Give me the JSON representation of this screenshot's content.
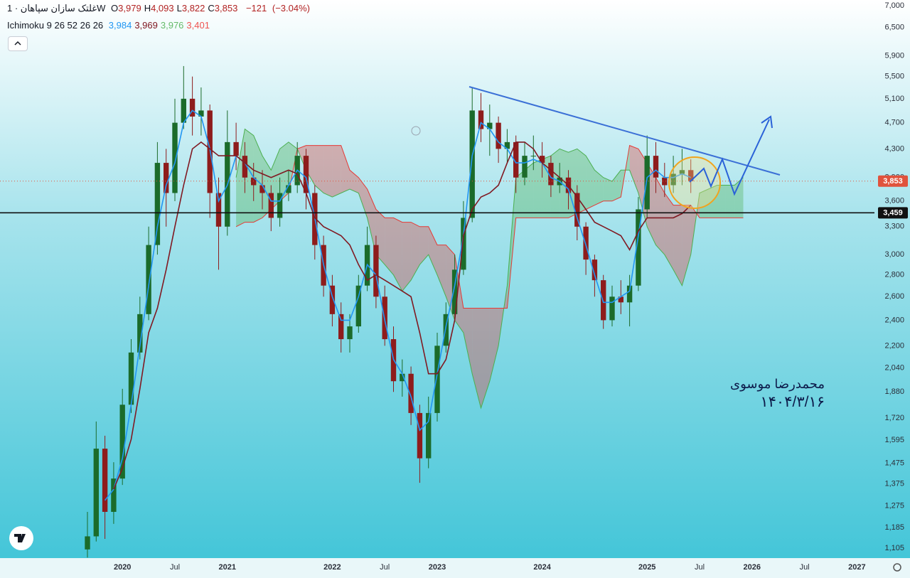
{
  "chart_data": {
    "type": "candlestick",
    "log_scale": true,
    "grid": false,
    "symbol": "غلتک سازان سپاهان · 1W",
    "ohlc_header": [
      {
        "key": "O",
        "value": 3979,
        "label": "3,979"
      },
      {
        "key": "H",
        "value": 4093,
        "label": "4,093"
      },
      {
        "key": "L",
        "value": 3822,
        "label": "3,822"
      },
      {
        "key": "C",
        "value": 3853,
        "label": "3,853"
      }
    ],
    "change": {
      "value": -121,
      "label": "−121"
    },
    "change_pct": {
      "value": -3.04,
      "label": "(−3.04%)"
    },
    "indicator": {
      "label": "Ichimoku 9 26 52 26 26",
      "values": [
        {
          "value": 3984,
          "label": "3,984",
          "color": "#2196f3"
        },
        {
          "value": 3969,
          "label": "3,969",
          "color": "#801922"
        },
        {
          "value": 3976,
          "label": "3,976",
          "color": "#66bb6a"
        },
        {
          "value": 3401,
          "label": "3,401",
          "color": "#ef5350"
        }
      ]
    },
    "annotations": [
      "محمدرضا موسوی",
      "۱۴۰۴/۳/۱۶"
    ],
    "xlim": [
      "2018-11",
      "2027-03"
    ],
    "xticks": [
      {
        "value": "2020-01",
        "label": "2020"
      },
      {
        "value": "2020-07",
        "label": "Jul"
      },
      {
        "value": "2021-01",
        "label": "2021"
      },
      {
        "value": "2022-01",
        "label": "2022"
      },
      {
        "value": "2022-07",
        "label": "Jul"
      },
      {
        "value": "2023-01",
        "label": "2023"
      },
      {
        "value": "2024-01",
        "label": "2024"
      },
      {
        "value": "2025-01",
        "label": "2025"
      },
      {
        "value": "2025-07",
        "label": "Jul"
      },
      {
        "value": "2026-01",
        "label": "2026"
      },
      {
        "value": "2026-07",
        "label": "Jul"
      },
      {
        "value": "2027-01",
        "label": "2027"
      }
    ],
    "ylim": [
      1068,
      7137
    ],
    "yticks": [
      {
        "value": 7000,
        "label": "7,000"
      },
      {
        "value": 6500,
        "label": "6,500"
      },
      {
        "value": 5900,
        "label": "5,900"
      },
      {
        "value": 5500,
        "label": "5,500"
      },
      {
        "value": 5100,
        "label": "5,100"
      },
      {
        "value": 4700,
        "label": "4,700"
      },
      {
        "value": 4300,
        "label": "4,300"
      },
      {
        "value": 3900,
        "label": "3,900"
      },
      {
        "value": 3600,
        "label": "3,600"
      },
      {
        "value": 3300,
        "label": "3,300"
      },
      {
        "value": 3000,
        "label": "3,000"
      },
      {
        "value": 2800,
        "label": "2,800"
      },
      {
        "value": 2600,
        "label": "2,600"
      },
      {
        "value": 2400,
        "label": "2,400"
      },
      {
        "value": 2200,
        "label": "2,200"
      },
      {
        "value": 2040,
        "label": "2,040"
      },
      {
        "value": 1880,
        "label": "1,880"
      },
      {
        "value": 1720,
        "label": "1,720"
      },
      {
        "value": 1595,
        "label": "1,595"
      },
      {
        "value": 1475,
        "label": "1,475"
      },
      {
        "value": 1375,
        "label": "1,375"
      },
      {
        "value": 1275,
        "label": "1,275"
      },
      {
        "value": 1185,
        "label": "1,185"
      },
      {
        "value": 1105,
        "label": "1,105"
      }
    ],
    "last_price": {
      "value": 3853,
      "label": "3,853",
      "color": "#e0533d"
    },
    "hline": {
      "value": 3459,
      "label": "3,459",
      "color": "#111111"
    },
    "x": [
      "2019-09",
      "2019-10",
      "2019-11",
      "2019-12",
      "2020-01",
      "2020-02",
      "2020-03",
      "2020-04",
      "2020-05",
      "2020-06",
      "2020-07",
      "2020-08",
      "2020-09",
      "2020-10",
      "2020-11",
      "2020-12",
      "2021-01",
      "2021-02",
      "2021-03",
      "2021-04",
      "2021-05",
      "2021-06",
      "2021-07",
      "2021-08",
      "2021-09",
      "2021-10",
      "2021-11",
      "2021-12",
      "2022-01",
      "2022-02",
      "2022-03",
      "2022-04",
      "2022-05",
      "2022-06",
      "2022-07",
      "2022-08",
      "2022-09",
      "2022-10",
      "2022-11",
      "2022-12",
      "2023-01",
      "2023-02",
      "2023-03",
      "2023-04",
      "2023-05",
      "2023-06",
      "2023-07",
      "2023-08",
      "2023-09",
      "2023-10",
      "2023-11",
      "2023-12",
      "2024-01",
      "2024-02",
      "2024-03",
      "2024-04",
      "2024-05",
      "2024-06",
      "2024-07",
      "2024-08",
      "2024-09",
      "2024-10",
      "2024-11",
      "2024-12",
      "2025-01",
      "2025-02",
      "2025-03",
      "2025-04",
      "2025-05",
      "2025-06",
      "2025-07",
      "2025-08",
      "2025-09",
      "2025-10",
      "2025-11",
      "2025-12"
    ],
    "candles": {
      "up_color": "#1b6b2a",
      "down_color": "#8e1c1c",
      "open": [
        1100,
        1150,
        1550,
        1250,
        1400,
        1800,
        2150,
        2450,
        3100,
        4100,
        3700,
        4700,
        5100,
        4800,
        4900,
        3700,
        3300,
        4400,
        4200,
        3900,
        3800,
        3700,
        3400,
        3700,
        3800,
        4200,
        3700,
        3100,
        2700,
        2450,
        2250,
        2350,
        2700,
        3100,
        2600,
        2250,
        1950,
        2000,
        1750,
        1500,
        1750,
        2200,
        2450,
        2850,
        3400,
        4900,
        4600,
        4700,
        4300,
        4400,
        3900,
        4200,
        4200,
        4100,
        3800,
        3900,
        3700,
        3300,
        2950,
        2750,
        2400,
        2600,
        2550,
        2700,
        3500,
        4200,
        3900,
        3800,
        3950,
        4000,
        null,
        null,
        null,
        null,
        null,
        null
      ],
      "high": [
        1250,
        1700,
        1620,
        1480,
        1900,
        2250,
        2600,
        3300,
        4400,
        4300,
        5100,
        5700,
        5500,
        5300,
        5000,
        3900,
        4900,
        4700,
        4400,
        4100,
        4000,
        3800,
        3900,
        4000,
        4400,
        4300,
        3800,
        3200,
        2800,
        2550,
        2450,
        2800,
        3300,
        3200,
        2700,
        2350,
        2100,
        2050,
        1800,
        1850,
        2300,
        2550,
        3000,
        3600,
        5300,
        5200,
        5000,
        4800,
        4600,
        4500,
        4400,
        4500,
        4400,
        4200,
        4100,
        4000,
        3800,
        3350,
        3000,
        2800,
        2700,
        2750,
        2800,
        3650,
        4500,
        4400,
        4100,
        4200,
        4300,
        4150,
        null,
        null,
        null,
        null,
        null,
        null
      ],
      "low": [
        1070,
        1130,
        1140,
        1200,
        1370,
        1750,
        2100,
        2400,
        3000,
        3300,
        3600,
        4600,
        4500,
        4500,
        3400,
        2850,
        3200,
        4000,
        3700,
        3600,
        3500,
        3250,
        3300,
        3600,
        3700,
        3500,
        2950,
        2600,
        2350,
        2150,
        2150,
        2300,
        2650,
        2500,
        2200,
        1880,
        1850,
        1680,
        1380,
        1450,
        1700,
        2150,
        2400,
        2800,
        3350,
        4400,
        4200,
        4100,
        4100,
        3700,
        3800,
        4000,
        3900,
        3650,
        3700,
        3500,
        3150,
        2800,
        2600,
        2330,
        2350,
        2450,
        2350,
        2650,
        3400,
        3700,
        3650,
        3700,
        3800,
        3700,
        null,
        null,
        null,
        null,
        null,
        null
      ],
      "close": [
        1150,
        1550,
        1250,
        1400,
        1800,
        2150,
        2450,
        3100,
        4100,
        3700,
        4700,
        5100,
        4800,
        4900,
        3700,
        3300,
        4400,
        4200,
        3900,
        3800,
        3700,
        3400,
        3700,
        3800,
        4200,
        3700,
        3100,
        2700,
        2450,
        2250,
        2350,
        2700,
        3100,
        2600,
        2250,
        1950,
        2000,
        1750,
        1500,
        1750,
        2200,
        2450,
        2850,
        3400,
        4900,
        4600,
        4700,
        4300,
        4400,
        3900,
        4200,
        4200,
        4100,
        3800,
        3900,
        3700,
        3300,
        2950,
        2750,
        2400,
        2600,
        2550,
        2700,
        3500,
        4200,
        3900,
        3800,
        3950,
        4000,
        3853,
        null,
        null,
        null,
        null,
        null,
        null
      ]
    },
    "cloud": {
      "up_color": "#4caf50",
      "down_color": "#e53935",
      "span_a": [
        null,
        null,
        null,
        null,
        null,
        null,
        null,
        null,
        null,
        null,
        null,
        null,
        null,
        null,
        null,
        null,
        null,
        3900,
        4600,
        4500,
        4200,
        4000,
        4300,
        4400,
        4300,
        4000,
        3800,
        3700,
        3650,
        3700,
        3750,
        3700,
        3400,
        3000,
        2900,
        2800,
        2650,
        2750,
        2900,
        3000,
        2800,
        2600,
        2400,
        2300,
        2000,
        1780,
        1950,
        2200,
        2700,
        3900,
        4000,
        4100,
        4150,
        4200,
        4300,
        4250,
        4300,
        4200,
        4000,
        3900,
        3850,
        4000,
        4000,
        3700,
        3300,
        3100,
        3000,
        2850,
        2700,
        3000,
        3700,
        3750,
        3800,
        3800,
        3800,
        3900
      ],
      "span_b": [
        null,
        null,
        null,
        null,
        null,
        null,
        null,
        null,
        null,
        null,
        null,
        null,
        null,
        null,
        null,
        null,
        null,
        3300,
        3350,
        3350,
        3400,
        3500,
        3600,
        3700,
        4300,
        4350,
        4350,
        4350,
        4350,
        4350,
        4000,
        3900,
        3750,
        3500,
        3400,
        3400,
        3350,
        3350,
        3300,
        3300,
        3100,
        3100,
        3000,
        2500,
        2500,
        2500,
        2500,
        2500,
        2500,
        3400,
        3400,
        3400,
        3400,
        3400,
        3400,
        3400,
        3450,
        3500,
        3550,
        3600,
        3600,
        3650,
        4350,
        4300,
        4100,
        3900,
        3700,
        3550,
        3550,
        3550,
        3400,
        3400,
        3400,
        3400,
        3400,
        3400
      ]
    },
    "lines": [
      {
        "color": "#2196f3",
        "values": [
          null,
          null,
          1300,
          1350,
          1500,
          1800,
          2200,
          2700,
          3300,
          3800,
          4100,
          4700,
          4900,
          4800,
          4300,
          3600,
          3800,
          4200,
          4100,
          3900,
          3800,
          3600,
          3600,
          3800,
          4000,
          3900,
          3400,
          2900,
          2600,
          2400,
          2400,
          2600,
          2900,
          2800,
          2400,
          2100,
          2000,
          1850,
          1650,
          1700,
          2000,
          2350,
          2700,
          3200,
          4200,
          4700,
          4600,
          4400,
          4300,
          4100,
          4100,
          4150,
          4100,
          3900,
          3850,
          3750,
          3400,
          3100,
          2800,
          2550,
          2550,
          2600,
          2650,
          3200,
          3900,
          4000,
          3900,
          3900,
          3950,
          3900,
          null,
          null,
          null,
          null,
          null,
          null
        ]
      },
      {
        "color": "#801922",
        "values": [
          null,
          null,
          null,
          1350,
          1450,
          1600,
          1900,
          2300,
          2500,
          2850,
          3300,
          3800,
          4300,
          4400,
          4300,
          4200,
          4200,
          4200,
          4100,
          4000,
          3950,
          3900,
          3950,
          4000,
          3950,
          3700,
          3400,
          3300,
          3250,
          3200,
          3100,
          2900,
          2750,
          2800,
          2750,
          2700,
          2650,
          2600,
          2300,
          2000,
          2000,
          2100,
          2400,
          3200,
          3500,
          3650,
          3700,
          3800,
          4100,
          4400,
          4400,
          4300,
          4100,
          4000,
          3900,
          3800,
          3650,
          3500,
          3350,
          3300,
          3250,
          3200,
          3050,
          3250,
          3400,
          3400,
          3400,
          3400,
          3450,
          3550,
          null,
          null,
          null,
          null,
          null,
          null
        ]
      }
    ]
  }
}
